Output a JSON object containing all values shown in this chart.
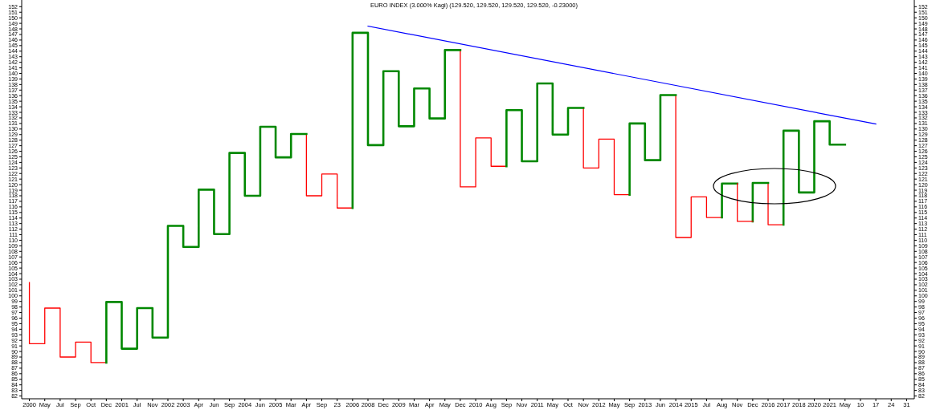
{
  "chart_data": {
    "type": "step",
    "title": "EURO INDEX (3.000% Kagi)  (129.520, 129.520, 129.520, 129.520, -0.23000)",
    "categories": [
      "2000",
      "May",
      "Jul",
      "Sep",
      "Oct",
      "Dec",
      "2001",
      "Jul",
      "Nov",
      "2002",
      "2003",
      "Apr",
      "Jun",
      "Sep",
      "2004",
      "Jun",
      "2005",
      "Mar",
      "Apr",
      "Sep",
      "23",
      "2006",
      "2008",
      "Dec",
      "2009",
      "Mar",
      "Apr",
      "May",
      "Dec",
      "2010",
      "Aug",
      "Sep",
      "Nov",
      "2011",
      "May",
      "Oct",
      "Nov",
      "2012",
      "May",
      "Sep",
      "2013",
      "Jun",
      "2014",
      "2015",
      "Jul",
      "Aug",
      "Nov",
      "Dec",
      "2016",
      "2017",
      "2018",
      "2020",
      "2021",
      "May",
      "10",
      "17",
      "24",
      "31"
    ],
    "series": [
      {
        "color": "#ff0000",
        "values": [
          102.4,
          91.4,
          97.8,
          89.0,
          91.7,
          88.0,
          null,
          null,
          null,
          null,
          null,
          null,
          null,
          null,
          null,
          null,
          null,
          null,
          129.1,
          118.0,
          121.9,
          115.8,
          null,
          null,
          null,
          null,
          null,
          null,
          144.2,
          119.6,
          128.4,
          123.3,
          null,
          null,
          null,
          null,
          133.8,
          123.0,
          128.2,
          118.2,
          null,
          null,
          136.1,
          110.5,
          117.8,
          114.1,
          null,
          null,
          120.3,
          112.8,
          null,
          null,
          null,
          null,
          null,
          null,
          null,
          null
        ]
      },
      {
        "color": "#008800",
        "values": [
          null,
          null,
          null,
          null,
          null,
          88.0,
          98.9,
          90.5,
          97.8,
          92.5,
          112.6,
          108.8,
          119.1,
          111.1,
          125.7,
          118.0,
          130.4,
          124.9,
          129.1,
          null,
          null,
          115.8,
          147.3,
          127.1,
          140.4,
          130.5,
          137.3,
          131.9,
          144.2,
          null,
          null,
          123.3,
          133.4,
          124.2,
          138.2,
          129.0,
          133.8,
          null,
          null,
          118.2,
          131.0,
          124.4,
          136.1,
          null,
          null,
          114.1,
          120.2,
          null,
          null,
          112.8,
          129.7,
          118.6,
          131.4,
          127.2,
          null,
          null,
          null,
          null
        ]
      },
      {
        "color": "#008800",
        "values": [
          null,
          null,
          null,
          null,
          null,
          null,
          null,
          null,
          null,
          null,
          null,
          null,
          null,
          null,
          null,
          null,
          null,
          null,
          null,
          null,
          null,
          null,
          null,
          null,
          null,
          null,
          null,
          null,
          null,
          null,
          null,
          null,
          null,
          null,
          null,
          null,
          null,
          null,
          null,
          null,
          null,
          null,
          null,
          null,
          null,
          null,
          null,
          113.4,
          120.3,
          null,
          null,
          null,
          null,
          null,
          null,
          null,
          null,
          null
        ]
      },
      {
        "color": "#ff0000",
        "values": [
          null,
          null,
          null,
          null,
          null,
          null,
          null,
          null,
          null,
          null,
          null,
          null,
          null,
          null,
          null,
          null,
          null,
          null,
          null,
          null,
          null,
          null,
          null,
          null,
          null,
          null,
          null,
          null,
          null,
          null,
          null,
          null,
          null,
          null,
          null,
          null,
          null,
          null,
          null,
          null,
          null,
          null,
          null,
          null,
          null,
          null,
          120.2,
          113.4,
          null,
          null,
          null,
          null,
          null,
          null,
          null,
          null,
          null,
          null
        ]
      },
      {
        "type": "line",
        "color": "#0000ff",
        "values": [
          null,
          null,
          null,
          null,
          null,
          null,
          null,
          null,
          null,
          null,
          null,
          null,
          null,
          null,
          null,
          null,
          null,
          null,
          null,
          null,
          null,
          null,
          148.5,
          null,
          null,
          null,
          null,
          null,
          null,
          null,
          null,
          null,
          null,
          null,
          null,
          null,
          null,
          null,
          null,
          null,
          null,
          null,
          null,
          null,
          null,
          null,
          null,
          null,
          null,
          null,
          null,
          null,
          null,
          null,
          null,
          130.9,
          null,
          null
        ]
      }
    ],
    "ylim": [
      81.5,
      153.2
    ],
    "yticks": [
      82,
      83,
      84,
      85,
      86,
      87,
      88,
      89,
      90,
      91,
      92,
      93,
      94,
      95,
      96,
      97,
      98,
      99,
      100,
      101,
      102,
      103,
      104,
      105,
      106,
      107,
      108,
      109,
      110,
      111,
      112,
      113,
      114,
      115,
      116,
      117,
      118,
      119,
      120,
      121,
      122,
      123,
      124,
      125,
      126,
      127,
      128,
      129,
      130,
      131,
      132,
      133,
      134,
      135,
      136,
      137,
      138,
      139,
      140,
      141,
      142,
      143,
      144,
      145,
      146,
      147,
      148,
      149,
      150,
      151,
      152
    ],
    "y2lim": [
      81.5,
      153.2
    ],
    "y2ticks": [
      82,
      83,
      84,
      85,
      86,
      87,
      88,
      89,
      90,
      91,
      92,
      93,
      94,
      95,
      96,
      97,
      98,
      99,
      100,
      101,
      102,
      103,
      104,
      105,
      106,
      107,
      108,
      109,
      110,
      111,
      112,
      113,
      114,
      115,
      116,
      117,
      118,
      119,
      120,
      121,
      122,
      123,
      124,
      125,
      126,
      127,
      128,
      129,
      130,
      131,
      132,
      133,
      134,
      135,
      136,
      137,
      138,
      139,
      140,
      141,
      142,
      143,
      144,
      145,
      146,
      147,
      148,
      149,
      150,
      151,
      152
    ]
  }
}
